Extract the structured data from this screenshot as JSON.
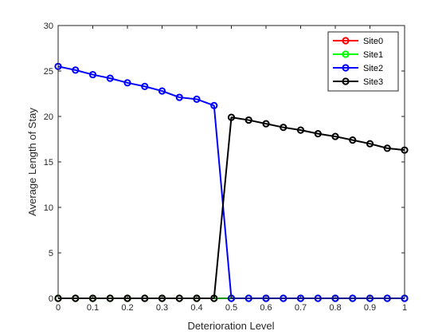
{
  "chart_data": {
    "type": "line",
    "xlabel": "Deterioration Level",
    "ylabel": "Average Length of Stay",
    "xlim": [
      0,
      1
    ],
    "ylim": [
      0,
      30
    ],
    "xticks": [
      0,
      0.1,
      0.2,
      0.3,
      0.4,
      0.5,
      0.6,
      0.7,
      0.8,
      0.9,
      1
    ],
    "xtick_labels": [
      "0",
      "0.1",
      "0.2",
      "0.3",
      "0.4",
      "0.5",
      "0.6",
      "0.7",
      "0.8",
      "0.9",
      "1"
    ],
    "yticks": [
      0,
      5,
      10,
      15,
      20,
      25,
      30
    ],
    "ytick_labels": [
      "0",
      "5",
      "10",
      "15",
      "20",
      "25",
      "30"
    ],
    "grid": false,
    "legend_position": "top-right",
    "marker": "circle",
    "x": [
      0,
      0.05,
      0.1,
      0.15,
      0.2,
      0.25,
      0.3,
      0.35,
      0.4,
      0.45,
      0.5,
      0.55,
      0.6,
      0.65,
      0.7,
      0.75,
      0.8,
      0.85,
      0.9,
      0.95,
      1
    ],
    "series": [
      {
        "name": "Site0",
        "color": "#ff0000",
        "values": [
          0,
          0,
          0,
          0,
          0,
          0,
          0,
          0,
          0,
          0,
          0,
          0,
          0,
          0,
          0,
          0,
          0,
          0,
          0,
          0,
          0
        ]
      },
      {
        "name": "Site1",
        "color": "#00ff00",
        "values": [
          0,
          0,
          0,
          0,
          0,
          0,
          0,
          0,
          0,
          0,
          0,
          0,
          0,
          0,
          0,
          0,
          0,
          0,
          0,
          0,
          0
        ]
      },
      {
        "name": "Site2",
        "color": "#0000ff",
        "values": [
          25.5,
          25.1,
          24.6,
          24.2,
          23.7,
          23.3,
          22.8,
          22.1,
          21.9,
          21.2,
          0,
          0,
          0,
          0,
          0,
          0,
          0,
          0,
          0,
          0,
          0
        ]
      },
      {
        "name": "Site3",
        "color": "#000000",
        "values": [
          0,
          0,
          0,
          0,
          0,
          0,
          0,
          0,
          0,
          0,
          19.9,
          19.6,
          19.2,
          18.8,
          18.5,
          18.1,
          17.8,
          17.4,
          17.0,
          16.5,
          16.3
        ]
      }
    ]
  }
}
